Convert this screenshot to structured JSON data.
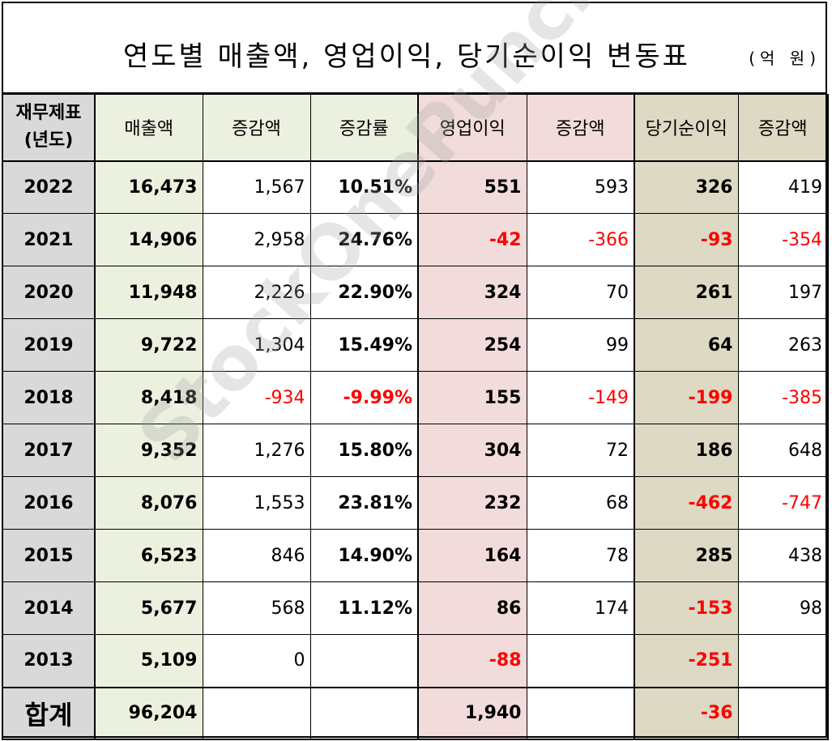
{
  "title": "연도별 매출액, 영업이익, 당기순이익 변동표",
  "unit": "(억 원)",
  "watermark": "StockOnePunch",
  "headers": {
    "year": "재무제표\n(년도)",
    "sales": "매출액",
    "sales_delta": "증감액",
    "sales_rate": "증감률",
    "op": "영업이익",
    "op_delta": "증감액",
    "net": "당기순이익",
    "net_delta": "증감액"
  },
  "rows": [
    {
      "year": "2022",
      "sales": "16,473",
      "sales_delta": "1,567",
      "sales_rate": "10.51%",
      "op": "551",
      "op_delta": "593",
      "net": "326",
      "net_delta": "419"
    },
    {
      "year": "2021",
      "sales": "14,906",
      "sales_delta": "2,958",
      "sales_rate": "24.76%",
      "op": "-42",
      "op_delta": "-366",
      "net": "-93",
      "net_delta": "-354"
    },
    {
      "year": "2020",
      "sales": "11,948",
      "sales_delta": "2,226",
      "sales_rate": "22.90%",
      "op": "324",
      "op_delta": "70",
      "net": "261",
      "net_delta": "197"
    },
    {
      "year": "2019",
      "sales": "9,722",
      "sales_delta": "1,304",
      "sales_rate": "15.49%",
      "op": "254",
      "op_delta": "99",
      "net": "64",
      "net_delta": "263"
    },
    {
      "year": "2018",
      "sales": "8,418",
      "sales_delta": "-934",
      "sales_rate": "-9.99%",
      "op": "155",
      "op_delta": "-149",
      "net": "-199",
      "net_delta": "-385"
    },
    {
      "year": "2017",
      "sales": "9,352",
      "sales_delta": "1,276",
      "sales_rate": "15.80%",
      "op": "304",
      "op_delta": "72",
      "net": "186",
      "net_delta": "648"
    },
    {
      "year": "2016",
      "sales": "8,076",
      "sales_delta": "1,553",
      "sales_rate": "23.81%",
      "op": "232",
      "op_delta": "68",
      "net": "-462",
      "net_delta": "-747"
    },
    {
      "year": "2015",
      "sales": "6,523",
      "sales_delta": "846",
      "sales_rate": "14.90%",
      "op": "164",
      "op_delta": "78",
      "net": "285",
      "net_delta": "438"
    },
    {
      "year": "2014",
      "sales": "5,677",
      "sales_delta": "568",
      "sales_rate": "11.12%",
      "op": "86",
      "op_delta": "174",
      "net": "-153",
      "net_delta": "98"
    },
    {
      "year": "2013",
      "sales": "5,109",
      "sales_delta": "0",
      "sales_rate": "",
      "op": "-88",
      "op_delta": "",
      "net": "-251",
      "net_delta": ""
    }
  ],
  "total": {
    "label": "합계",
    "sales": "96,204",
    "op": "1,940",
    "net": "-36"
  },
  "colors": {
    "year_bg": "#d9d9d9",
    "sales_bg": "#ebf1de",
    "op_bg": "#f2dcdb",
    "net_bg": "#ddd9c4",
    "negative": "#ff0000"
  }
}
